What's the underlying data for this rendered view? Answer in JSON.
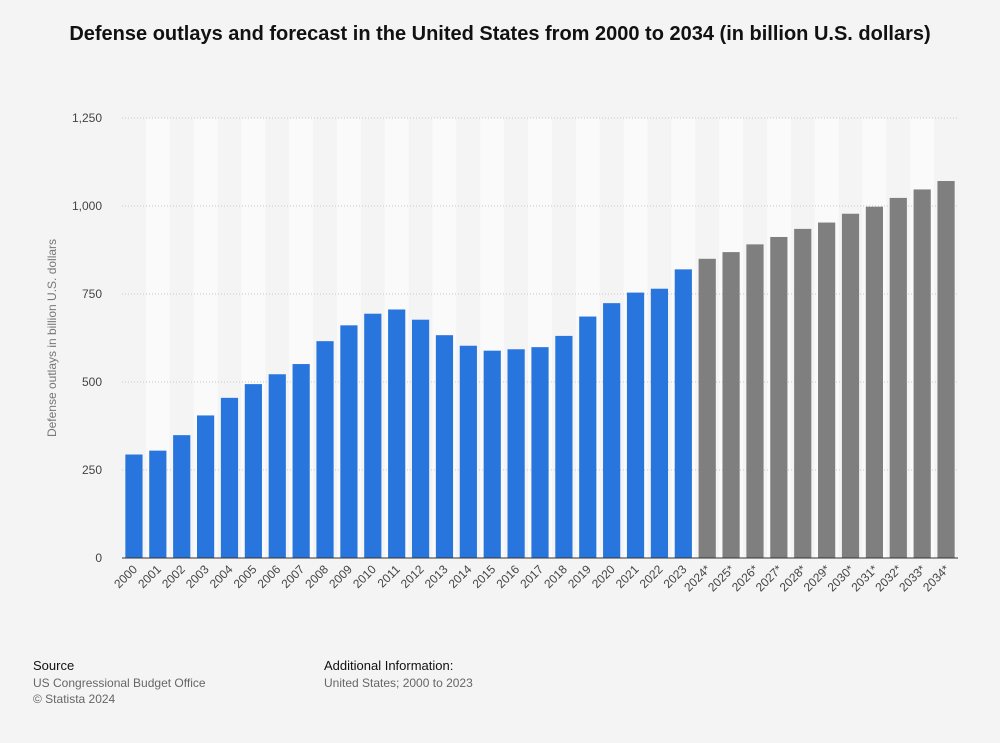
{
  "chart_data": {
    "type": "bar",
    "title": "Defense outlays and forecast in the United States from 2000 to 2034 (in billion U.S. dollars)",
    "ylabel": "Defense outlays in billion U.S. dollars",
    "xlabel": "",
    "ylim": [
      0,
      1250
    ],
    "yticks": [
      0,
      250,
      500,
      750,
      1000,
      1250
    ],
    "ytick_labels": [
      "0",
      "250",
      "500",
      "750",
      "1,000",
      "1,250"
    ],
    "grid": "horizontal dotted",
    "categories": [
      "2000",
      "2001",
      "2002",
      "2003",
      "2004",
      "2005",
      "2006",
      "2007",
      "2008",
      "2009",
      "2010",
      "2011",
      "2012",
      "2013",
      "2014",
      "2015",
      "2016",
      "2017",
      "2018",
      "2019",
      "2020",
      "2021",
      "2022",
      "2023",
      "2024*",
      "2025*",
      "2026*",
      "2027*",
      "2028*",
      "2029*",
      "2030*",
      "2031*",
      "2032*",
      "2033*",
      "2034*"
    ],
    "values": [
      294,
      305,
      349,
      405,
      455,
      494,
      522,
      551,
      616,
      661,
      694,
      706,
      677,
      633,
      603,
      589,
      593,
      599,
      631,
      686,
      724,
      754,
      765,
      820,
      850,
      869,
      891,
      912,
      935,
      953,
      978,
      998,
      1023,
      1047,
      1071
    ],
    "colors": {
      "actual": "#2876dd",
      "forecast": "#7f7f7f"
    },
    "forecast_start_index": 24
  },
  "footer": {
    "source_heading": "Source",
    "source_line1": "US Congressional Budget Office",
    "source_line2": "© Statista 2024",
    "info_heading": "Additional Information:",
    "info_text": "United States; 2000 to 2023"
  }
}
